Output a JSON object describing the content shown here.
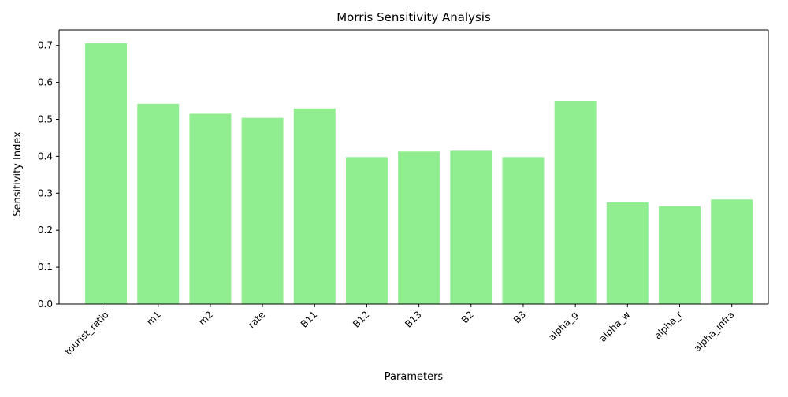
{
  "chart_data": {
    "type": "bar",
    "title": "Morris Sensitivity Analysis",
    "xlabel": "Parameters",
    "ylabel": "Sensitivity Index",
    "categories": [
      "tourist_ratio",
      "m1",
      "m2",
      "rate",
      "B11",
      "B12",
      "B13",
      "B2",
      "B3",
      "alpha_g",
      "alpha_w",
      "alpha_r",
      "alpha_infra"
    ],
    "values": [
      0.706,
      0.542,
      0.515,
      0.504,
      0.529,
      0.398,
      0.413,
      0.415,
      0.398,
      0.55,
      0.275,
      0.265,
      0.283
    ],
    "ylim": [
      0,
      0.742
    ],
    "yticks": [
      0.0,
      0.1,
      0.2,
      0.3,
      0.4,
      0.5,
      0.6,
      0.7
    ],
    "ytick_labels": [
      "0.0",
      "0.1",
      "0.2",
      "0.3",
      "0.4",
      "0.5",
      "0.6",
      "0.7"
    ],
    "grid": false,
    "bar_color": "#90EE90",
    "axis_color": "#000000"
  }
}
